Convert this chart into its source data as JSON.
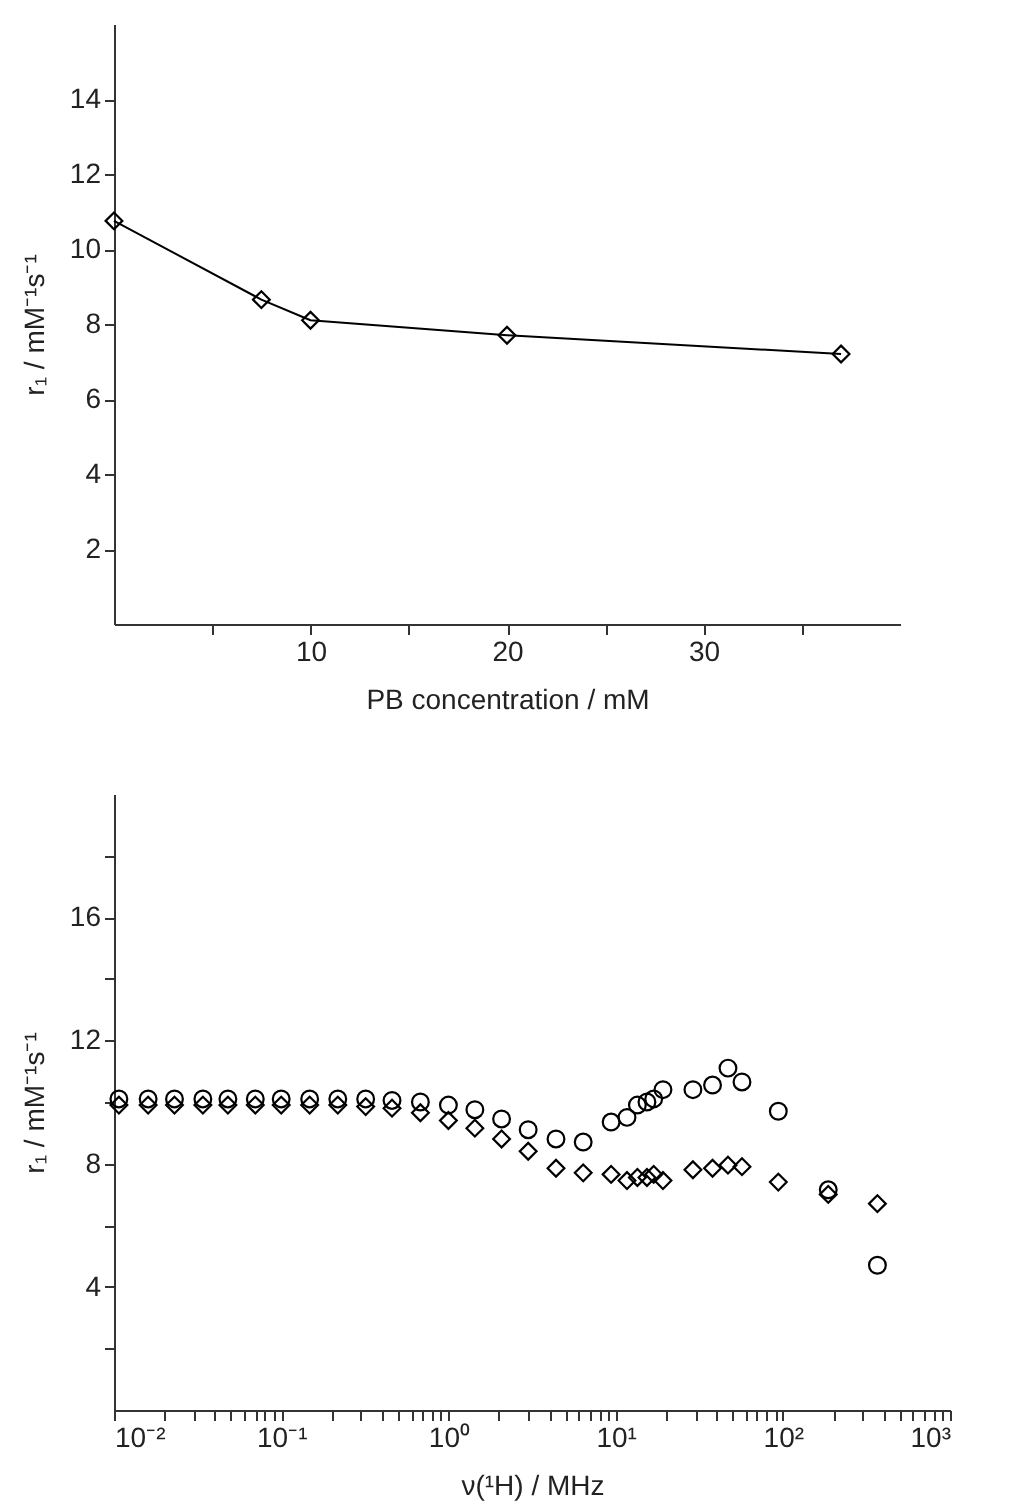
{
  "chart_data": [
    {
      "type": "line",
      "xlabel": "PB concentration  / mM",
      "ylabel": "r₁  / mM⁻¹s⁻¹",
      "xlim": [
        0,
        40
      ],
      "ylim": [
        0,
        16
      ],
      "xticks": [
        {
          "value": 5,
          "label": null
        },
        10,
        {
          "value": 15,
          "label": null
        },
        20,
        {
          "value": 25,
          "label": null
        },
        30,
        {
          "value": 35,
          "label": null
        }
      ],
      "yticks": [
        2,
        4,
        6,
        8,
        10,
        12,
        14
      ],
      "marker": "diamond",
      "line_style": "solid",
      "series": [
        {
          "color": "#000000",
          "x": [
            0,
            7.5,
            10,
            20,
            37
          ],
          "values": [
            10.75,
            8.65,
            8.1,
            7.7,
            7.2
          ]
        }
      ]
    },
    {
      "type": "scatter",
      "xlabel": "ν(¹H)  / MHz",
      "ylabel": "r₁  / mM⁻¹s⁻¹",
      "log": "x",
      "xlim": [
        0.01,
        1000
      ],
      "ylim": [
        0,
        20
      ],
      "xticks": [
        {
          "value": 0.01,
          "label": "10⁻²"
        },
        {
          "value": 0.02,
          "label": null
        },
        {
          "value": 0.03,
          "label": null
        },
        {
          "value": 0.04,
          "label": null
        },
        {
          "value": 0.05,
          "label": null
        },
        {
          "value": 0.06,
          "label": null
        },
        {
          "value": 0.07,
          "label": null
        },
        {
          "value": 0.08,
          "label": null
        },
        {
          "value": 0.09,
          "label": null
        },
        {
          "value": 0.1,
          "label": "10⁻¹"
        },
        {
          "value": 0.2,
          "label": null
        },
        {
          "value": 0.3,
          "label": null
        },
        {
          "value": 0.4,
          "label": null
        },
        {
          "value": 0.5,
          "label": null
        },
        {
          "value": 0.6,
          "label": null
        },
        {
          "value": 0.7,
          "label": null
        },
        {
          "value": 0.8,
          "label": null
        },
        {
          "value": 0.9,
          "label": null
        },
        {
          "value": 1,
          "label": "10⁰"
        },
        {
          "value": 2,
          "label": null
        },
        {
          "value": 3,
          "label": null
        },
        {
          "value": 4,
          "label": null
        },
        {
          "value": 5,
          "label": null
        },
        {
          "value": 6,
          "label": null
        },
        {
          "value": 7,
          "label": null
        },
        {
          "value": 8,
          "label": null
        },
        {
          "value": 9,
          "label": null
        },
        {
          "value": 10,
          "label": "10¹"
        },
        {
          "value": 20,
          "label": null
        },
        {
          "value": 30,
          "label": null
        },
        {
          "value": 40,
          "label": null
        },
        {
          "value": 50,
          "label": null
        },
        {
          "value": 60,
          "label": null
        },
        {
          "value": 70,
          "label": null
        },
        {
          "value": 80,
          "label": null
        },
        {
          "value": 90,
          "label": null
        },
        {
          "value": 100,
          "label": "10²"
        },
        {
          "value": 200,
          "label": null
        },
        {
          "value": 300,
          "label": null
        },
        {
          "value": 400,
          "label": null
        },
        {
          "value": 500,
          "label": null
        },
        {
          "value": 600,
          "label": null
        },
        {
          "value": 700,
          "label": null
        },
        {
          "value": 800,
          "label": null
        },
        {
          "value": 900,
          "label": null
        },
        {
          "value": 1000,
          "label": "10³"
        }
      ],
      "yticks": [
        {
          "value": 2,
          "label": null
        },
        4,
        {
          "value": 6,
          "label": null
        },
        8,
        {
          "value": 10,
          "label": null
        },
        12,
        {
          "value": 14,
          "label": null
        },
        16,
        {
          "value": 18,
          "label": null
        }
      ],
      "x": [
        0.0107,
        0.016,
        0.023,
        0.034,
        0.048,
        0.07,
        0.1,
        0.148,
        0.218,
        0.32,
        0.46,
        0.68,
        1.0,
        1.44,
        2.08,
        3.0,
        4.4,
        6.4,
        9.4,
        11.7,
        13.5,
        15.4,
        16.9,
        19.2,
        29,
        38,
        47,
        57,
        94,
        187,
        368
      ],
      "series": [
        {
          "color": "#000000",
          "marker": "circle",
          "values": [
            10.1,
            10.1,
            10.1,
            10.1,
            10.1,
            10.1,
            10.1,
            10.1,
            10.1,
            10.1,
            10.05,
            10.0,
            9.9,
            9.75,
            9.45,
            9.1,
            8.8,
            8.7,
            9.35,
            9.5,
            9.9,
            10.0,
            10.1,
            10.4,
            10.4,
            10.55,
            11.1,
            10.65,
            9.7,
            7.15,
            4.7
          ]
        },
        {
          "color": "#000000",
          "marker": "diamond",
          "values": [
            9.9,
            9.9,
            9.9,
            9.9,
            9.9,
            9.9,
            9.9,
            9.9,
            9.9,
            9.85,
            9.8,
            9.65,
            9.4,
            9.15,
            8.8,
            8.4,
            7.85,
            7.7,
            7.65,
            7.45,
            7.55,
            7.55,
            7.65,
            7.45,
            7.8,
            7.85,
            7.95,
            7.9,
            7.4,
            7.0,
            6.7
          ]
        }
      ]
    }
  ]
}
